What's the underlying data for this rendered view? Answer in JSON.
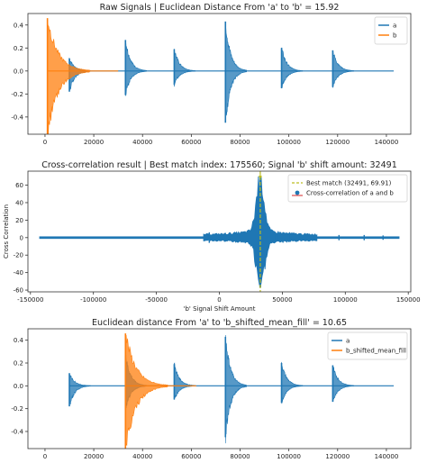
{
  "chart_data": [
    {
      "type": "line",
      "title": "Raw Signals | Euclidean Distance From 'a' to 'b' = 15.92",
      "xlabel": "",
      "ylabel": "",
      "xlim": [
        -7000,
        150000
      ],
      "ylim": [
        -0.55,
        0.5
      ],
      "xticks": [
        0,
        20000,
        40000,
        60000,
        80000,
        100000,
        120000,
        140000
      ],
      "yticks": [
        -0.4,
        -0.2,
        0.0,
        0.2,
        0.4
      ],
      "legend_position": "top-right",
      "legend": [
        "a",
        "b"
      ],
      "series": [
        {
          "name": "a",
          "color": "#1f77b4",
          "bursts": [
            {
              "x": 10000,
              "up": 0.11,
              "down": -0.18
            },
            {
              "x": 33000,
              "up": 0.27,
              "down": -0.21
            },
            {
              "x": 53000,
              "up": 0.19,
              "down": -0.12
            },
            {
              "x": 74000,
              "up": 0.43,
              "down": -0.45
            },
            {
              "x": 97000,
              "up": 0.2,
              "down": -0.15
            },
            {
              "x": 118000,
              "up": 0.18,
              "down": -0.14
            }
          ],
          "end": 143000
        },
        {
          "name": "b",
          "color": "#ff7f0e",
          "bursts": [
            {
              "x": 1000,
              "up": 0.46,
              "down": -0.55
            }
          ],
          "end": 30000
        }
      ]
    },
    {
      "type": "line",
      "title": "Cross-correlation result | Best match index: 175560; Signal 'b' shift amount: 32491",
      "xlabel": "'b' Signal Shift Amount",
      "ylabel": "Cross Correlation",
      "xlim": [
        -152000,
        152000
      ],
      "ylim": [
        -62,
        76
      ],
      "xticks": [
        -150000,
        -100000,
        -50000,
        0,
        50000,
        100000,
        150000
      ],
      "yticks": [
        -60,
        -40,
        -20,
        0,
        20,
        40,
        60
      ],
      "legend_position": "top-right",
      "legend": [
        "Best match (32491, 69.91)",
        "Cross-correlation of a and b"
      ],
      "best_match": {
        "x": 32491,
        "y": 69.91,
        "color": "#bcbd22"
      },
      "series": [
        {
          "name": "Cross-correlation of a and b",
          "color": "#1f77b4",
          "x_range": [
            -143000,
            143000
          ],
          "peak": {
            "x": 32491,
            "up": 69.91,
            "down": -57
          }
        }
      ]
    },
    {
      "type": "line",
      "title": "Euclidean distance From 'a' to 'b_shifted_mean_fill' = 10.65",
      "xlabel": "",
      "ylabel": "",
      "xlim": [
        -7000,
        150000
      ],
      "ylim": [
        -0.55,
        0.5
      ],
      "xticks": [
        0,
        20000,
        40000,
        60000,
        80000,
        100000,
        120000,
        140000
      ],
      "yticks": [
        -0.4,
        -0.2,
        0.0,
        0.2,
        0.4
      ],
      "legend_position": "top-right",
      "legend": [
        "a",
        "b_shifted_mean_fill"
      ],
      "series": [
        {
          "name": "a",
          "color": "#1f77b4",
          "bursts": [
            {
              "x": 10000,
              "up": 0.11,
              "down": -0.18
            },
            {
              "x": 33000,
              "up": 0.27,
              "down": -0.21
            },
            {
              "x": 53000,
              "up": 0.19,
              "down": -0.12
            },
            {
              "x": 74000,
              "up": 0.43,
              "down": -0.45
            },
            {
              "x": 97000,
              "up": 0.2,
              "down": -0.15
            },
            {
              "x": 118000,
              "up": 0.18,
              "down": -0.14
            }
          ],
          "end": 143000
        },
        {
          "name": "b_shifted_mean_fill",
          "color": "#ff7f0e",
          "bursts": [
            {
              "x": 33000,
              "up": 0.46,
              "down": -0.55
            }
          ],
          "end": 62000
        }
      ]
    }
  ]
}
